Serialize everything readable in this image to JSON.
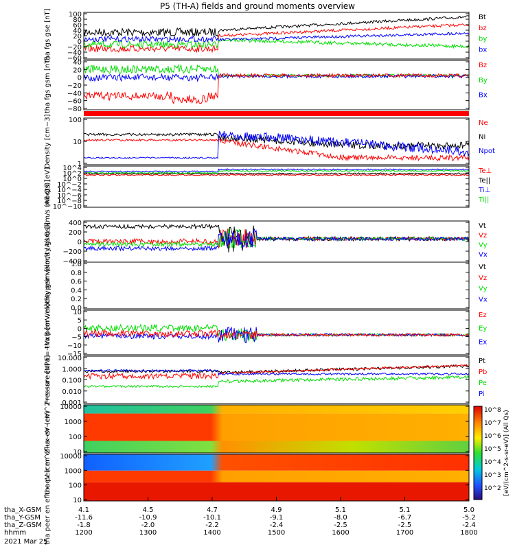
{
  "title": "P5 (TH-A) fields and ground moments overview",
  "date_label": "2021 Mar 25",
  "time_axis": {
    "row_labels": [
      "tha_X-GSM",
      "tha_Y-GSM",
      "tha_Z-GSM",
      "hhmm"
    ],
    "columns": [
      {
        "x": "4.1",
        "y": "-11.6",
        "z": "-1.8",
        "hhmm": "1200"
      },
      {
        "x": "4.5",
        "y": "-10.9",
        "z": "-2.0",
        "hhmm": "1300"
      },
      {
        "x": "4.7",
        "y": "-10.1",
        "z": "-2.2",
        "hhmm": "1400"
      },
      {
        "x": "4.9",
        "y": "-9.1",
        "z": "-2.4",
        "hhmm": "1500"
      },
      {
        "x": "5.1",
        "y": "-8.0",
        "z": "-2.5",
        "hhmm": "1600"
      },
      {
        "x": "5.1",
        "y": "-6.7",
        "z": "-2.5",
        "hhmm": "1700"
      },
      {
        "x": "5.0",
        "y": "-5.2",
        "z": "-2.4",
        "hhmm": "1800"
      }
    ]
  },
  "colors": {
    "black": "#000000",
    "red": "#ff0000",
    "green": "#00dd00",
    "blue": "#0000ff"
  },
  "colorbar": {
    "label": "[eV/(cm^2-s-sr-eV)] (All Qs)",
    "ticks": [
      "10^8",
      "10^7",
      "10^6",
      "10^5",
      "10^4",
      "10^3",
      "10^2"
    ]
  },
  "chart_data": [
    {
      "type": "line",
      "ylabel": "tha fgs gse [nT]",
      "yticks": [
        "100",
        "80",
        "60",
        "40",
        "20",
        "0",
        "−20",
        "−40",
        "−60"
      ],
      "legend": [
        {
          "name": "Bt",
          "color": "black"
        },
        {
          "name": "bz",
          "color": "red"
        },
        {
          "name": "by",
          "color": "green"
        },
        {
          "name": "bx",
          "color": "blue"
        }
      ]
    },
    {
      "type": "line",
      "ylabel": "tha fgs gsm [nT]",
      "yticks": [
        "40",
        "20",
        "0",
        "−20",
        "−40",
        "−60",
        "−80"
      ],
      "legend": [
        {
          "name": "Bz",
          "color": "red"
        },
        {
          "name": "By",
          "color": "green"
        },
        {
          "name": "Bx",
          "color": "blue"
        }
      ]
    },
    {
      "type": "line",
      "ylabel": "Density [cm−3]",
      "yticks": [
        "100",
        "10",
        "1"
      ],
      "legend": [
        {
          "name": "Ne",
          "color": "red"
        },
        {
          "name": "Ni",
          "color": "black"
        },
        {
          "name": "Npot",
          "color": "blue"
        }
      ]
    },
    {
      "type": "line",
      "ylabel": "moqt3 [eV]",
      "yticks": [
        "10^4",
        "10^2",
        "10^0",
        "10^−2",
        "10^−4",
        "10^−6",
        "10^−8",
        "10^−10"
      ],
      "legend": [
        {
          "name": "Te⊥",
          "color": "red"
        },
        {
          "name": "Te||",
          "color": "black"
        },
        {
          "name": "Ti⊥",
          "color": "blue"
        },
        {
          "name": "Ti||",
          "color": "green"
        }
      ]
    },
    {
      "type": "line",
      "ylabel": "tha peir velocity gsm [km/s (All Qs)]",
      "yticks": [
        "400",
        "200",
        "0",
        "−200",
        "−400"
      ],
      "legend": [
        {
          "name": "Vt",
          "color": "black"
        },
        {
          "name": "Vz",
          "color": "red"
        },
        {
          "name": "Vy",
          "color": "green"
        },
        {
          "name": "Vx",
          "color": "blue"
        }
      ]
    },
    {
      "type": "line",
      "ylabel": "tha peer velocity gsm [km/s (All Qs)]",
      "yticks": [
        "1.0",
        "0.8",
        "0.6",
        "0.4",
        "0.2",
        "0.0"
      ],
      "legend": [
        {
          "name": "Vt",
          "color": "black"
        },
        {
          "name": "Vz",
          "color": "red"
        },
        {
          "name": "Vy",
          "color": "green"
        },
        {
          "name": "Vx",
          "color": "blue"
        }
      ]
    },
    {
      "type": "line",
      "ylabel": "E=−VxB [mV/m]",
      "yticks": [
        "10",
        "5",
        "0",
        "−5",
        "−10",
        "−15"
      ],
      "legend": [
        {
          "name": "Ez",
          "color": "red"
        },
        {
          "name": "Ey",
          "color": "green"
        },
        {
          "name": "Ex",
          "color": "blue"
        }
      ]
    },
    {
      "type": "line",
      "ylabel": "Pressure [nPa]",
      "yticks": [
        "10.000",
        "1.000",
        "0.100",
        "0.010",
        "0.001"
      ],
      "legend": [
        {
          "name": "Pt",
          "color": "black"
        },
        {
          "name": "Pb",
          "color": "red"
        },
        {
          "name": "Pe",
          "color": "green"
        },
        {
          "name": "Pi",
          "color": "blue"
        }
      ]
    },
    {
      "type": "heatmap",
      "ylabel": "tha peir en eflux eV (cm^2−s−sr−eV)",
      "yticks": [
        "10000",
        "1000",
        "100",
        "10"
      ]
    },
    {
      "type": "heatmap",
      "ylabel": "tha peer en eflux eV (cm^2−s−sr−eV)",
      "yticks": [
        "10000",
        "1000",
        "100",
        "10"
      ]
    }
  ]
}
